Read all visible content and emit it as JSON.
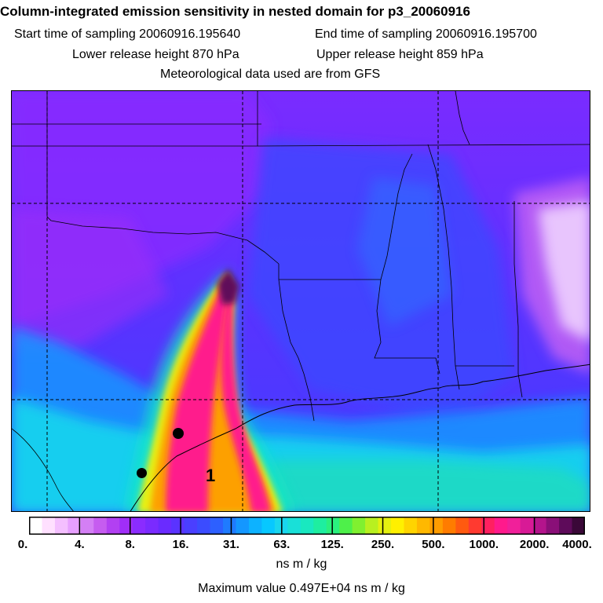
{
  "header": {
    "title": "Column-integrated emission sensitivity in nested domain for p3_20060916",
    "start_label": "Start time of sampling 20060916.195640",
    "end_label": "End time of sampling 20060916.195700",
    "lower_release": "Lower release height  870 hPa",
    "upper_release": "Upper release height  859 hPa",
    "met_data": "Meteorological data used are from GFS"
  },
  "map": {
    "plume_label": "1",
    "markers": [
      "site-marker-1",
      "site-marker-2"
    ],
    "palette": {
      "background_low": "#7a2bff",
      "ocean_cyan": "#19d6ee",
      "plume_core": "#ff1a8c",
      "plume_peak": "#4a0c3a",
      "plume_mid": "#ffb000",
      "land_blue": "#3b3cff",
      "east_white": "#f2d8ff"
    }
  },
  "colorbar": {
    "labels": [
      "0.",
      "4.",
      "8.",
      "16.",
      "31.",
      "63.",
      "125.",
      "250.",
      "500.",
      "1000.",
      "2000.",
      "4000."
    ],
    "colors": [
      "#ffffff",
      "#ffe0ff",
      "#f4bfff",
      "#e7a0ff",
      "#d47ff5",
      "#c65cf0",
      "#b240f2",
      "#a02ef8",
      "#8a2cff",
      "#7a2bff",
      "#6a2bff",
      "#5a33ff",
      "#4a3fff",
      "#3b4cff",
      "#2d60ff",
      "#1f7bff",
      "#1497ff",
      "#0db2ff",
      "#07c8ff",
      "#19d6ee",
      "#19e0d8",
      "#19e8c0",
      "#1eeea0",
      "#2af07e",
      "#4ef04a",
      "#80f030",
      "#b8f020",
      "#e4f010",
      "#fff000",
      "#ffd400",
      "#ffb800",
      "#ff9c00",
      "#ff7c00",
      "#ff5a10",
      "#ff3a30",
      "#ff2060",
      "#ff1a8c",
      "#f0209a",
      "#d81a96",
      "#b4148c",
      "#8a0f78",
      "#5e0b5a",
      "#3a0838"
    ],
    "units": "ns m / kg",
    "max_value": "Maximum value  0.497E+04 ns m / kg"
  }
}
